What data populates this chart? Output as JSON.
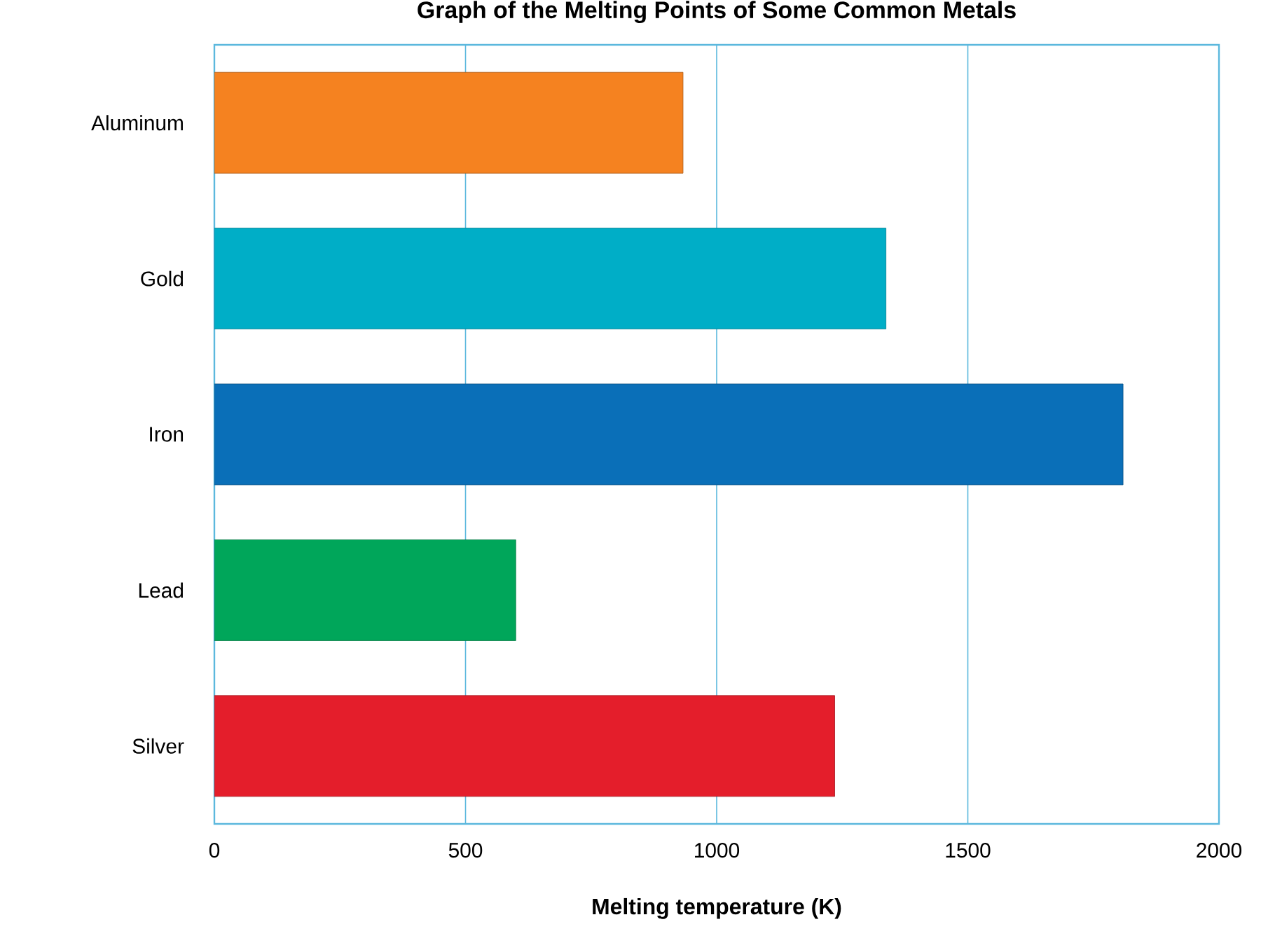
{
  "chart_data": {
    "type": "bar",
    "orientation": "horizontal",
    "title": "Graph of the Melting Points of Some Common Metals",
    "xlabel": "Melting temperature (K)",
    "categories": [
      "Aluminum",
      "Gold",
      "Iron",
      "Lead",
      "Silver"
    ],
    "values": [
      933,
      1337,
      1809,
      600,
      1235
    ],
    "colors": [
      "#f58220",
      "#00aec7",
      "#0a6fb8",
      "#00a65a",
      "#e41e2b"
    ],
    "xlim": [
      0,
      2000
    ],
    "xticks": [
      0,
      500,
      1000,
      1500,
      2000
    ],
    "grid": "x"
  }
}
